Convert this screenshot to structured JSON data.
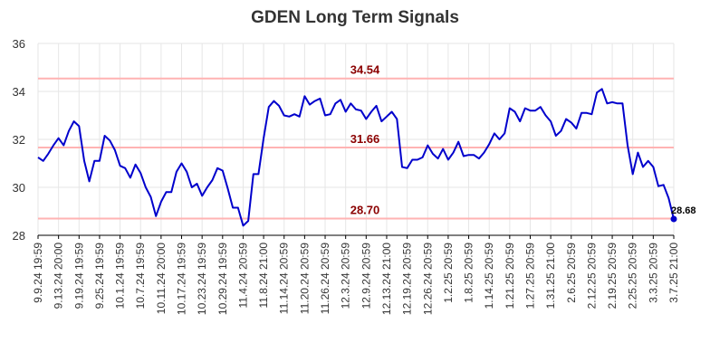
{
  "chart_data": {
    "type": "line",
    "title": "GDEN Long Term Signals",
    "xlabel": "",
    "ylabel": "",
    "ylim": [
      28,
      36
    ],
    "yticks": [
      "28",
      "30",
      "32",
      "34",
      "36"
    ],
    "grid": true,
    "xtick_labels": [
      "9.9.24 19:59",
      "9.13.24 20:00",
      "9.19.24 19:59",
      "9.25.24 19:59",
      "10.1.24 19:59",
      "10.7.24 19:59",
      "10.11.24 20:00",
      "10.17.24 19:59",
      "10.23.24 19:59",
      "10.29.24 19:59",
      "11.4.24 20:59",
      "11.8.24 21:00",
      "11.14.24 20:59",
      "11.20.24 20:59",
      "11.26.24 20:59",
      "12.3.24 20:59",
      "12.9.24 20:59",
      "12.13.24 21:00",
      "12.19.24 20:59",
      "12.26.24 20:59",
      "1.2.25 20:59",
      "1.8.25 20:59",
      "1.14.25 20:59",
      "1.21.25 20:59",
      "1.27.25 20:59",
      "1.31.25 21:00",
      "2.6.25 20:59",
      "2.12.25 20:59",
      "2.19.25 20:59",
      "2.25.25 20:59",
      "3.3.25 20:59",
      "3.7.25 21:00"
    ],
    "series": [
      {
        "color": "#0000cc",
        "values": [
          31.25,
          31.1,
          31.4,
          31.75,
          32.05,
          31.75,
          32.35,
          32.75,
          32.55,
          31.1,
          30.25,
          31.1,
          31.1,
          32.15,
          31.95,
          31.55,
          30.9,
          30.8,
          30.4,
          30.95,
          30.6,
          30.0,
          29.6,
          28.8,
          29.4,
          29.8,
          29.8,
          30.65,
          31.0,
          30.65,
          30.0,
          30.15,
          29.65,
          30.0,
          30.3,
          30.8,
          30.7,
          29.95,
          29.15,
          29.15,
          28.4,
          28.6,
          30.55,
          30.55,
          32.05,
          33.35,
          33.6,
          33.4,
          33.0,
          32.95,
          33.05,
          32.95,
          33.8,
          33.45,
          33.6,
          33.7,
          33.0,
          33.05,
          33.5,
          33.65,
          33.15,
          33.5,
          33.25,
          33.2,
          32.85,
          33.15,
          33.4,
          32.75,
          32.95,
          33.15,
          32.85,
          30.85,
          30.8,
          31.15,
          31.15,
          31.25,
          31.75,
          31.4,
          31.2,
          31.6,
          31.15,
          31.45,
          31.9,
          31.3,
          31.35,
          31.35,
          31.2,
          31.45,
          31.8,
          32.25,
          32.0,
          32.25,
          33.3,
          33.15,
          32.75,
          33.3,
          33.2,
          33.2,
          33.35,
          33.0,
          32.75,
          32.15,
          32.35,
          32.85,
          32.7,
          32.45,
          33.1,
          33.1,
          33.05,
          33.95,
          34.1,
          33.5,
          33.55,
          33.5,
          33.5,
          31.75,
          30.55,
          31.45,
          30.85,
          31.1,
          30.85,
          30.05,
          30.1,
          29.55,
          28.68
        ]
      }
    ],
    "horizontal_lines": [
      {
        "value": 34.54,
        "label": "34.54",
        "color": "#ffb3b3"
      },
      {
        "value": 31.66,
        "label": "31.66",
        "color": "#ffb3b3"
      },
      {
        "value": 28.7,
        "label": "28.70",
        "color": "#ffb3b3"
      }
    ],
    "last_value_label": "28.68"
  }
}
